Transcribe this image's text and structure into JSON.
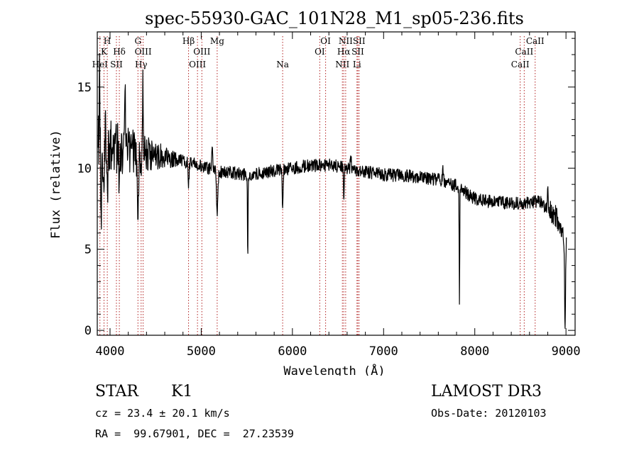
{
  "chart_data": {
    "type": "line",
    "title": "spec-55930-GAC_101N28_M1_sp05-236.fits",
    "xlabel": "Wavelength (Å)",
    "ylabel": "Flux (relative)",
    "xlim": [
      3860,
      9100
    ],
    "ylim": [
      -0.3,
      18.4
    ],
    "xticks": [
      4000,
      5000,
      6000,
      7000,
      8000,
      9000
    ],
    "yticks": [
      0,
      5,
      10,
      15
    ],
    "line_color": "#000000",
    "marker_color": "#b22222",
    "spectral_lines": [
      {
        "label": "H",
        "wave": 3970,
        "row": 1
      },
      {
        "label": "K",
        "wave": 3934,
        "row": 2
      },
      {
        "label": "HeI",
        "wave": 3889,
        "row": 3
      },
      {
        "label": "Hδ",
        "wave": 4102,
        "row": 2
      },
      {
        "label": "SII",
        "wave": 4070,
        "row": 3
      },
      {
        "label": "G",
        "wave": 4306,
        "row": 1
      },
      {
        "label": "OIII",
        "wave": 4363,
        "row": 2
      },
      {
        "label": "Hγ",
        "wave": 4341,
        "row": 3
      },
      {
        "label": "Hβ",
        "wave": 4861,
        "row": 1
      },
      {
        "label": "OIII",
        "wave": 5007,
        "row": 2
      },
      {
        "label": "OIII",
        "wave": 4959,
        "row": 3
      },
      {
        "label": "Mg",
        "wave": 5175,
        "row": 1
      },
      {
        "label": "Na",
        "wave": 5893,
        "row": 3
      },
      {
        "label": "OI",
        "wave": 6364,
        "row": 1
      },
      {
        "label": "OI",
        "wave": 6300,
        "row": 2
      },
      {
        "label": "NII",
        "wave": 6584,
        "row": 1
      },
      {
        "label": "SII",
        "wave": 6731,
        "row": 1
      },
      {
        "label": "Hα",
        "wave": 6563,
        "row": 2
      },
      {
        "label": "SII",
        "wave": 6717,
        "row": 2
      },
      {
        "label": "NII",
        "wave": 6548,
        "row": 3
      },
      {
        "label": "Li",
        "wave": 6708,
        "row": 3
      },
      {
        "label": "CaII",
        "wave": 8662,
        "row": 1
      },
      {
        "label": "CaII",
        "wave": 8542,
        "row": 2
      },
      {
        "label": "CaII",
        "wave": 8498,
        "row": 3
      }
    ],
    "continuum": [
      [
        3870,
        11.5
      ],
      [
        3950,
        11.8
      ],
      [
        4100,
        11.2
      ],
      [
        4300,
        11.0
      ],
      [
        4600,
        10.7
      ],
      [
        4900,
        10.3
      ],
      [
        5200,
        9.8
      ],
      [
        5500,
        9.6
      ],
      [
        5900,
        9.9
      ],
      [
        6100,
        10.1
      ],
      [
        6400,
        10.2
      ],
      [
        6600,
        10.0
      ],
      [
        7000,
        9.6
      ],
      [
        7300,
        9.5
      ],
      [
        7600,
        9.3
      ],
      [
        7800,
        8.9
      ],
      [
        8000,
        8.1
      ],
      [
        8200,
        7.9
      ],
      [
        8500,
        7.8
      ],
      [
        8700,
        8.0
      ],
      [
        8900,
        7.0
      ],
      [
        9000,
        5.5
      ]
    ],
    "features": [
      {
        "wave": 3905,
        "depth": 4.5,
        "width": 6
      },
      {
        "wave": 3934,
        "depth": 3.0,
        "width": 8
      },
      {
        "wave": 3970,
        "depth": 3.5,
        "width": 8
      },
      {
        "wave": 4102,
        "depth": 2.0,
        "width": 6
      },
      {
        "wave": 4306,
        "depth": 3.5,
        "width": 8
      },
      {
        "wave": 4340,
        "depth": 1.5,
        "width": 6
      },
      {
        "wave": 4861,
        "depth": 1.5,
        "width": 6
      },
      {
        "wave": 5175,
        "depth": 2.5,
        "width": 8
      },
      {
        "wave": 5510,
        "depth": 5.8,
        "width": 3
      },
      {
        "wave": 5893,
        "depth": 2.6,
        "width": 4
      },
      {
        "wave": 6563,
        "depth": 1.8,
        "width": 4
      },
      {
        "wave": 7832,
        "depth": 7.5,
        "width": 3
      },
      {
        "wave": 8990,
        "depth": 5.2,
        "width": 5
      }
    ],
    "spikes": [
      {
        "wave": 3885,
        "height": 5.0,
        "width": 4
      },
      {
        "wave": 3950,
        "height": 3.0,
        "width": 5
      },
      {
        "wave": 4165,
        "height": 5.0,
        "width": 5
      },
      {
        "wave": 4360,
        "height": 4.5,
        "width": 5
      },
      {
        "wave": 5120,
        "height": 1.2,
        "width": 6
      },
      {
        "wave": 6640,
        "height": 0.6,
        "width": 6
      },
      {
        "wave": 7650,
        "height": 0.9,
        "width": 5
      },
      {
        "wave": 8800,
        "height": 0.9,
        "width": 6
      }
    ],
    "noise": {
      "sample_step": 3.5,
      "amp_blue": 2.0,
      "amp_red": 0.4,
      "seed": 55930
    }
  },
  "info": {
    "class_label": "STAR",
    "subclass": "K1",
    "survey": "LAMOST DR3",
    "cz": "cz = 23.4 ± 20.1 km/s",
    "obs_date": "Obs-Date: 20120103",
    "radec": "RA =  99.67901, DEC =  27.23539"
  }
}
